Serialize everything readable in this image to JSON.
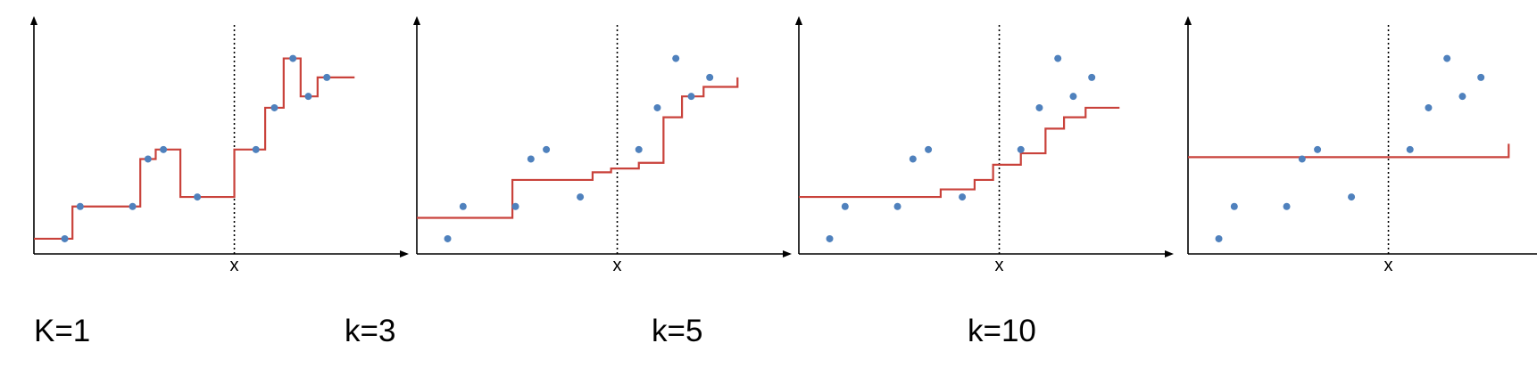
{
  "chart_data": [
    {
      "type": "line",
      "x_tick_label": "x",
      "query_x": 6.5,
      "points": {
        "x": [
          1,
          1.5,
          3.2,
          3.7,
          4.2,
          5.3,
          7.2,
          7.8,
          8.4,
          8.9,
          9.5
        ],
        "y": [
          0.8,
          2.5,
          2.5,
          5.0,
          5.5,
          3.0,
          5.5,
          7.7,
          10.3,
          8.3,
          9.3
        ]
      },
      "fit": {
        "x": [
          0,
          1.25,
          2.35,
          3.45,
          3.95,
          4.75,
          6.5,
          7.5,
          8.1,
          8.65,
          9.2,
          10.4
        ],
        "y": [
          0.8,
          2.5,
          2.5,
          5.0,
          5.5,
          3.0,
          5.5,
          7.7,
          10.3,
          8.3,
          9.3,
          9.3
        ]
      }
    },
    {
      "type": "line",
      "x_tick_label": "x",
      "query_x": 6.5,
      "points": {
        "x": [
          1,
          1.5,
          3.2,
          3.7,
          4.2,
          5.3,
          7.2,
          7.8,
          8.4,
          8.9,
          9.5
        ],
        "y": [
          0.8,
          2.5,
          2.5,
          5.0,
          5.5,
          3.0,
          5.5,
          7.7,
          10.3,
          8.3,
          9.3
        ]
      },
      "fit": {
        "x": [
          0,
          2.5,
          3.1,
          4.6,
          5.7,
          6.3,
          7.2,
          8.0,
          8.6,
          9.3,
          10.4
        ],
        "y": [
          1.9,
          1.9,
          3.9,
          3.9,
          4.3,
          4.5,
          4.8,
          7.2,
          8.3,
          8.8,
          9.3
        ]
      }
    },
    {
      "type": "line",
      "x_tick_label": "x",
      "query_x": 6.5,
      "points": {
        "x": [
          1,
          1.5,
          3.2,
          3.7,
          4.2,
          5.3,
          7.2,
          7.8,
          8.4,
          8.9,
          9.5
        ],
        "y": [
          0.8,
          2.5,
          2.5,
          5.0,
          5.5,
          3.0,
          5.5,
          7.7,
          10.3,
          8.3,
          9.3
        ]
      },
      "fit": {
        "x": [
          0,
          3.1,
          4.6,
          5.7,
          6.3,
          7.2,
          8.0,
          8.6,
          9.3,
          10.4
        ],
        "y": [
          3.0,
          3.0,
          3.4,
          3.9,
          4.7,
          5.3,
          6.6,
          7.2,
          7.7,
          7.7
        ]
      }
    },
    {
      "type": "line",
      "x_tick_label": "x",
      "query_x": 6.5,
      "points": {
        "x": [
          1,
          1.5,
          3.2,
          3.7,
          4.2,
          5.3,
          7.2,
          7.8,
          8.4,
          8.9,
          9.5
        ],
        "y": [
          0.8,
          2.5,
          2.5,
          5.0,
          5.5,
          3.0,
          5.5,
          7.7,
          10.3,
          8.3,
          9.3
        ]
      },
      "fit": {
        "x": [
          0,
          5.5,
          10.4
        ],
        "y": [
          5.1,
          5.1,
          5.8
        ]
      }
    }
  ],
  "labels": {
    "k1": "K=1",
    "k3": "k=3",
    "k5": "k=5",
    "k10": "k=10"
  },
  "colors": {
    "fit_line": "#c9423b",
    "points": "#4f81bd",
    "axes": "#000000"
  }
}
